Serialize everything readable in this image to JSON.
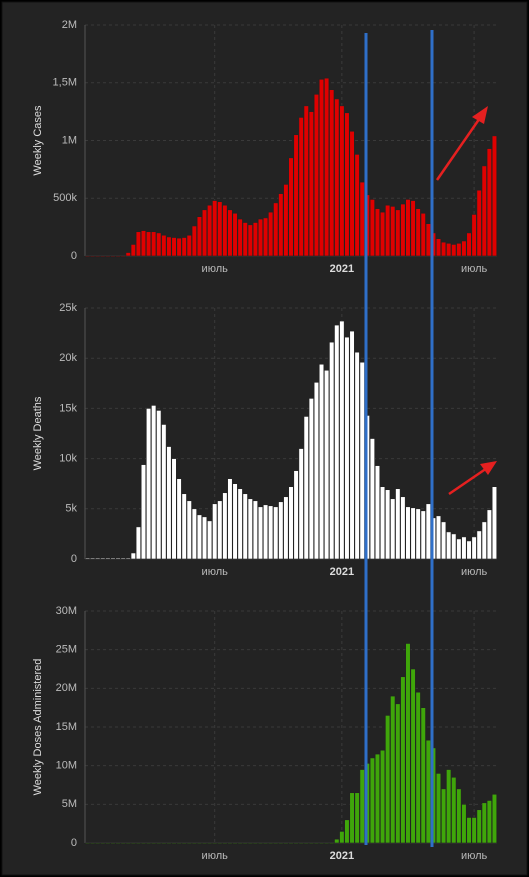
{
  "chart_data": [
    {
      "type": "bar",
      "ylabel": "Weekly Cases",
      "color": "#e00000",
      "grid": true,
      "categories": [
        null,
        null,
        null,
        null,
        null,
        null,
        null,
        null,
        null,
        null,
        null,
        null,
        null,
        null,
        null,
        null,
        null,
        null,
        null,
        null,
        null,
        null,
        null,
        null,
        null,
        "июль",
        null,
        null,
        null,
        null,
        null,
        null,
        null,
        null,
        null,
        null,
        null,
        null,
        null,
        null,
        null,
        null,
        null,
        null,
        null,
        null,
        null,
        null,
        null,
        null,
        "2021",
        null,
        null,
        null,
        null,
        null,
        null,
        null,
        null,
        null,
        null,
        null,
        null,
        null,
        null,
        null,
        null,
        null,
        null,
        null,
        null,
        null,
        null,
        null,
        null,
        null,
        "июль",
        null,
        null,
        null,
        null
      ],
      "values": [
        0,
        0,
        0,
        0,
        0,
        0,
        0,
        0,
        30000,
        100000,
        210000,
        220000,
        210000,
        210000,
        200000,
        180000,
        165000,
        160000,
        155000,
        160000,
        180000,
        260000,
        340000,
        400000,
        440000,
        480000,
        470000,
        440000,
        400000,
        370000,
        320000,
        290000,
        270000,
        290000,
        320000,
        330000,
        380000,
        460000,
        540000,
        620000,
        850000,
        1050000,
        1200000,
        1300000,
        1250000,
        1400000,
        1530000,
        1540000,
        1440000,
        1360000,
        1300000,
        1240000,
        1080000,
        880000,
        640000,
        530000,
        490000,
        410000,
        380000,
        440000,
        430000,
        400000,
        450000,
        490000,
        480000,
        410000,
        370000,
        280000,
        200000,
        150000,
        120000,
        110000,
        100000,
        110000,
        130000,
        200000,
        360000,
        570000,
        780000,
        930000,
        1040000
      ],
      "ylim": [
        0,
        2000000
      ],
      "yticks": [
        0,
        {
          "value": 500000,
          "label": "500k"
        },
        {
          "value": 1000000,
          "label": "1M"
        },
        {
          "value": 1500000,
          "label": "1,5M"
        },
        {
          "value": 2000000,
          "label": "2M"
        }
      ]
    },
    {
      "type": "bar",
      "ylabel": "Weekly Deaths",
      "color": "#ffffff",
      "grid": true,
      "categories": [
        null,
        null,
        null,
        null,
        null,
        null,
        null,
        null,
        null,
        null,
        null,
        null,
        null,
        null,
        null,
        null,
        null,
        null,
        null,
        null,
        null,
        null,
        null,
        null,
        null,
        "июль",
        null,
        null,
        null,
        null,
        null,
        null,
        null,
        null,
        null,
        null,
        null,
        null,
        null,
        null,
        null,
        null,
        null,
        null,
        null,
        null,
        null,
        null,
        null,
        null,
        "2021",
        null,
        null,
        null,
        null,
        null,
        null,
        null,
        null,
        null,
        null,
        null,
        null,
        null,
        null,
        null,
        null,
        null,
        null,
        null,
        null,
        null,
        null,
        null,
        null,
        null,
        "июль",
        null,
        null,
        null,
        null
      ],
      "values": [
        100,
        100,
        100,
        100,
        100,
        100,
        100,
        100,
        100,
        600,
        3200,
        9400,
        15000,
        15300,
        14800,
        13400,
        11200,
        10000,
        8000,
        6500,
        5800,
        5000,
        4400,
        4200,
        3800,
        5500,
        5800,
        6600,
        8000,
        7500,
        7000,
        6500,
        6000,
        5800,
        5200,
        5400,
        5300,
        5200,
        5700,
        6200,
        7200,
        8800,
        11000,
        14200,
        16000,
        17600,
        19400,
        18800,
        21600,
        23300,
        23700,
        22100,
        22700,
        20600,
        19600,
        14300,
        12000,
        9300,
        7200,
        6900,
        6000,
        7000,
        6200,
        5200,
        5100,
        5000,
        4800,
        5500,
        4100,
        4300,
        3700,
        2700,
        2500,
        2000,
        2200,
        1800,
        2200,
        2800,
        3700,
        4900,
        7200
      ],
      "ylim": [
        0,
        25000
      ],
      "yticks": [
        0,
        {
          "value": 5000,
          "label": "5k"
        },
        {
          "value": 10000,
          "label": "10k"
        },
        {
          "value": 15000,
          "label": "15k"
        },
        {
          "value": 20000,
          "label": "20k"
        },
        {
          "value": 25000,
          "label": "25k"
        }
      ]
    },
    {
      "type": "bar",
      "ylabel": "Weekly Doses Administered",
      "color": "#3fa60a",
      "grid": true,
      "categories": [
        null,
        null,
        null,
        null,
        null,
        null,
        null,
        null,
        null,
        null,
        null,
        null,
        null,
        null,
        null,
        null,
        null,
        null,
        null,
        null,
        null,
        null,
        null,
        null,
        null,
        "июль",
        null,
        null,
        null,
        null,
        null,
        null,
        null,
        null,
        null,
        null,
        null,
        null,
        null,
        null,
        null,
        null,
        null,
        null,
        null,
        null,
        null,
        null,
        null,
        null,
        "2021",
        null,
        null,
        null,
        null,
        null,
        null,
        null,
        null,
        null,
        null,
        null,
        null,
        null,
        null,
        null,
        null,
        null,
        null,
        null,
        null,
        null,
        null,
        null,
        null,
        null,
        "июль",
        null,
        null,
        null,
        null
      ],
      "values": [
        0,
        0,
        0,
        0,
        0,
        0,
        0,
        0,
        0,
        0,
        0,
        0,
        0,
        0,
        0,
        0,
        0,
        0,
        0,
        0,
        0,
        0,
        0,
        0,
        0,
        0,
        0,
        0,
        0,
        0,
        0,
        0,
        0,
        0,
        0,
        0,
        0,
        0,
        0,
        0,
        0,
        0,
        0,
        0,
        0,
        0,
        0,
        0,
        0,
        500000,
        1500000,
        3000000,
        6500000,
        6500000,
        9500000,
        10300000,
        11000000,
        11500000,
        12000000,
        16500000,
        19000000,
        18000000,
        21500000,
        25800000,
        22500000,
        19500000,
        17500000,
        13300000,
        12300000,
        9000000,
        7000000,
        9500000,
        8500000,
        7000000,
        5000000,
        3300000,
        3300000,
        4300000,
        5200000,
        5500000,
        6300000
      ],
      "ylim": [
        0,
        30000000
      ],
      "yticks": [
        0,
        {
          "value": 5000000,
          "label": "5M"
        },
        {
          "value": 10000000,
          "label": "10M"
        },
        {
          "value": 15000000,
          "label": "15M"
        },
        {
          "value": 20000000,
          "label": "20M"
        },
        {
          "value": 25000000,
          "label": "25M"
        },
        {
          "value": 30000000,
          "label": "30M"
        }
      ]
    }
  ]
}
